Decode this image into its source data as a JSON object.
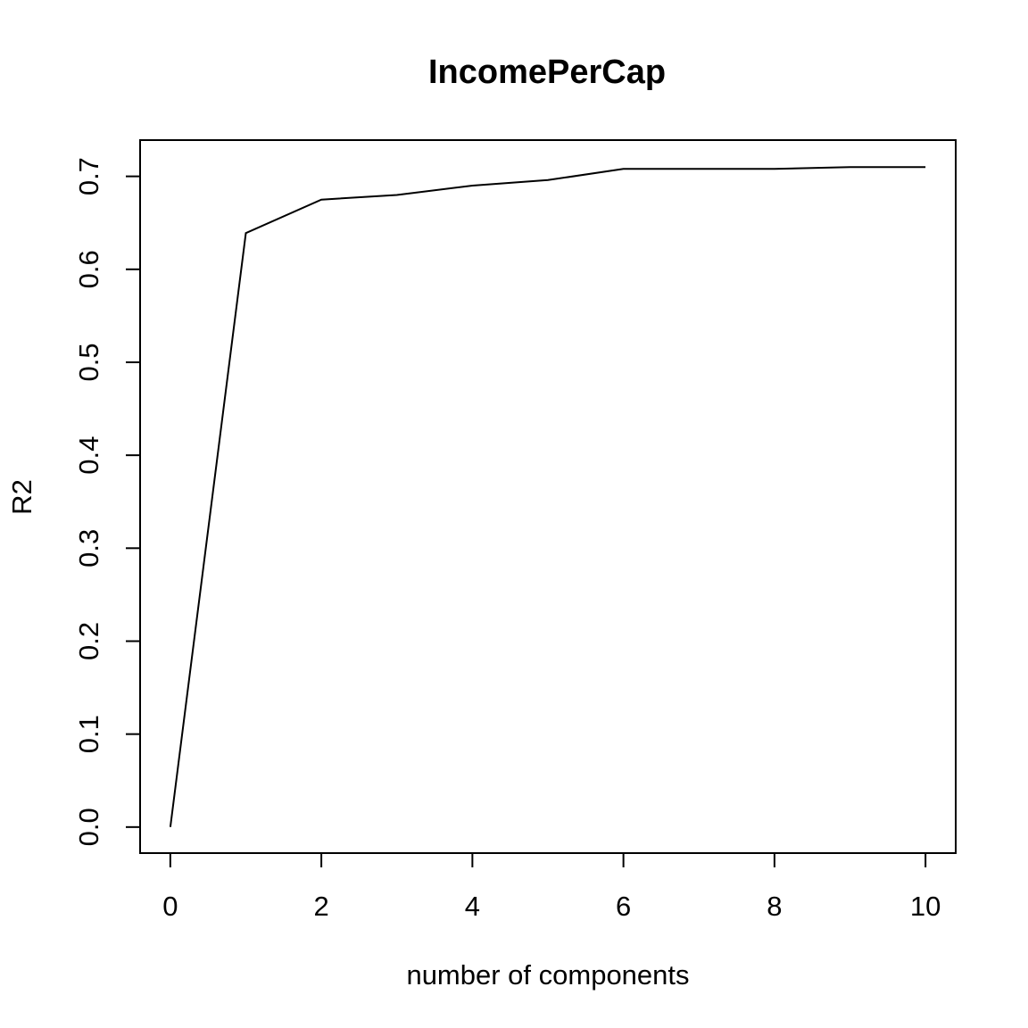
{
  "chart_data": {
    "type": "line",
    "title": "IncomePerCap",
    "xlabel": "number of components",
    "ylabel": "R2",
    "x": [
      0,
      1,
      2,
      3,
      4,
      5,
      6,
      7,
      8,
      9,
      10
    ],
    "series": [
      {
        "values": [
          0.0,
          0.639,
          0.675,
          0.68,
          0.69,
          0.696,
          0.708,
          0.708,
          0.708,
          0.71,
          0.71
        ]
      }
    ],
    "xlim": [
      -0.4,
      10.4
    ],
    "ylim": [
      -0.028,
      0.739
    ],
    "xticks": [
      0,
      2,
      4,
      6,
      8,
      10
    ],
    "xtick_labels": [
      "0",
      "2",
      "4",
      "6",
      "8",
      "10"
    ],
    "yticks": [
      0.0,
      0.1,
      0.2,
      0.3,
      0.4,
      0.5,
      0.6,
      0.7
    ],
    "ytick_labels": [
      "0.0",
      "0.1",
      "0.2",
      "0.3",
      "0.4",
      "0.5",
      "0.6",
      "0.7"
    ],
    "grid": false,
    "line_color": "#000000"
  }
}
